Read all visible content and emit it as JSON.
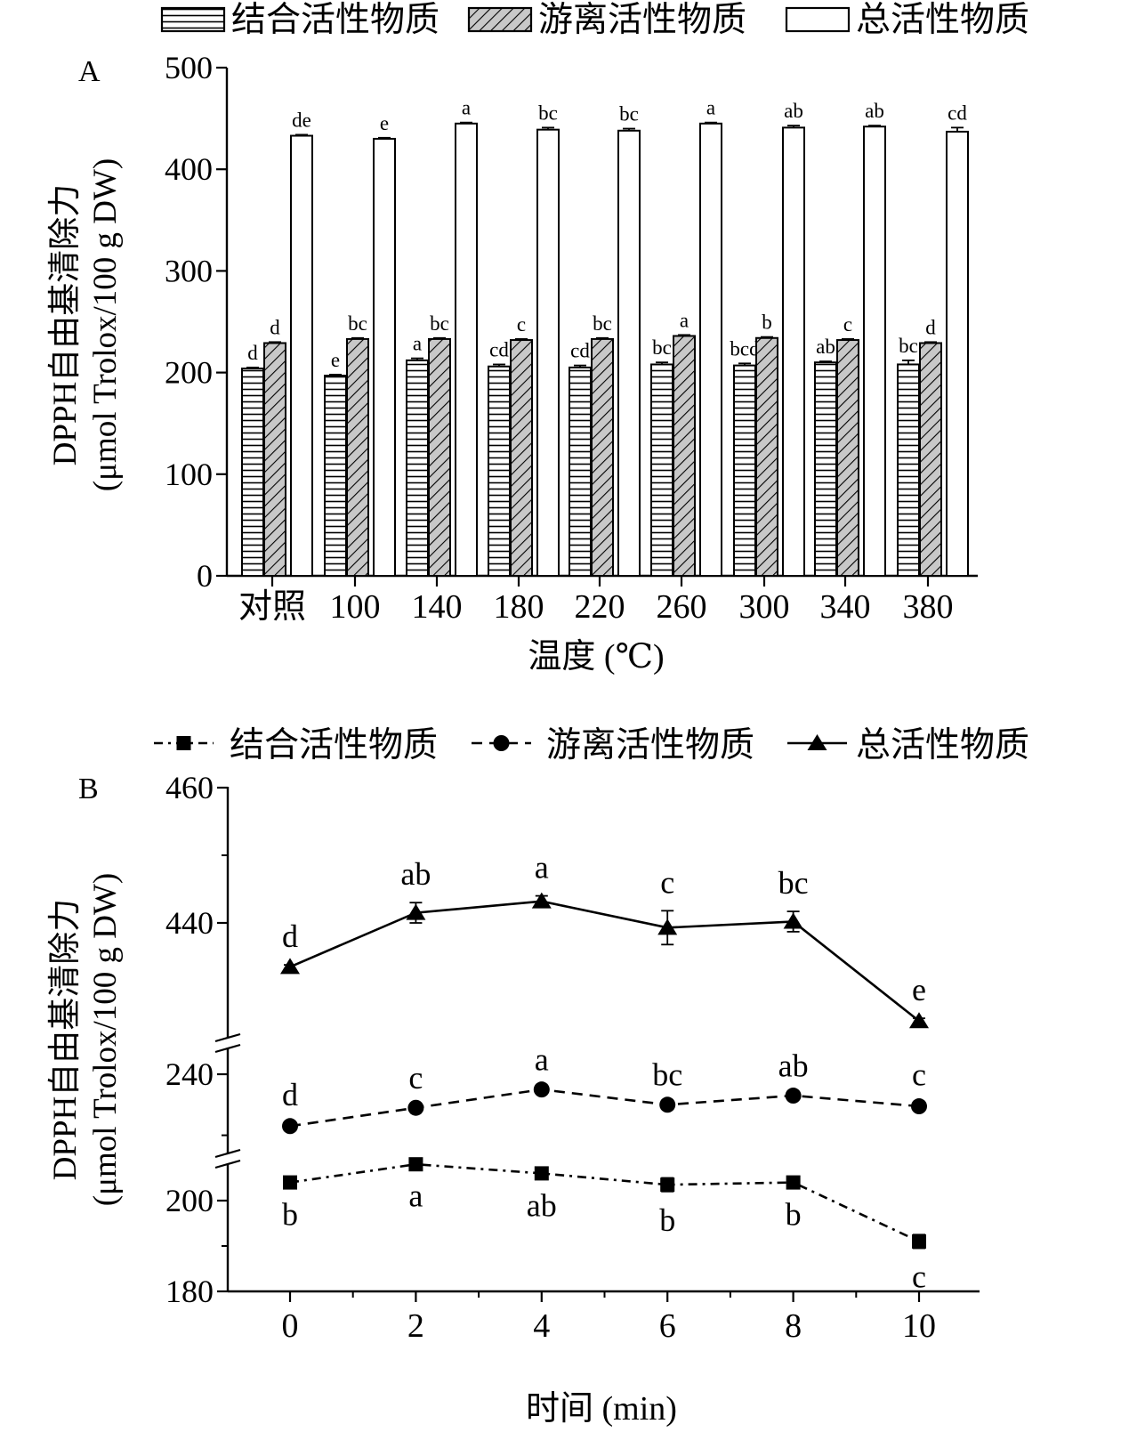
{
  "chart_data": [
    {
      "panel": "A",
      "type": "bar",
      "legend": [
        "结合活性物质",
        "游离活性物质",
        "总活性物质"
      ],
      "legend_position": "top",
      "ylabel_line1": "DPPH自由基清除力",
      "ylabel_line2": "(μmol Trolox/100 g DW)",
      "xlabel": "温度 (℃)",
      "ylim": [
        0,
        500
      ],
      "yticks": [
        0,
        100,
        200,
        300,
        400,
        500
      ],
      "categories": [
        "对照",
        "100",
        "140",
        "180",
        "220",
        "260",
        "300",
        "340",
        "380"
      ],
      "series": [
        {
          "name": "结合活性物质",
          "values": [
            204,
            197,
            212,
            206,
            205,
            208,
            207,
            210,
            208
          ],
          "errors": [
            1,
            1,
            2,
            2,
            2,
            2,
            2,
            1,
            4
          ],
          "letters": [
            "d",
            "e",
            "a",
            "cd",
            "cd",
            "bc",
            "bcd",
            "ab",
            "bc"
          ]
        },
        {
          "name": "游离活性物质",
          "values": [
            229,
            233,
            233,
            232,
            233,
            236,
            234,
            232,
            229
          ],
          "errors": [
            1,
            1,
            1,
            1,
            1,
            1,
            1,
            1,
            1
          ],
          "letters": [
            "d",
            "bc",
            "bc",
            "c",
            "bc",
            "a",
            "b",
            "c",
            "d"
          ]
        },
        {
          "name": "总活性物质",
          "values": [
            433,
            430,
            445,
            439,
            438,
            445,
            441,
            442,
            437
          ],
          "errors": [
            1,
            1,
            1,
            2,
            2,
            1,
            2,
            1,
            4
          ],
          "letters": [
            "de",
            "e",
            "a",
            "bc",
            "bc",
            "a",
            "ab",
            "ab",
            "cd"
          ]
        }
      ]
    },
    {
      "panel": "B",
      "type": "line",
      "legend": [
        "结合活性物质",
        "游离活性物质",
        "总活性物质"
      ],
      "legend_position": "top",
      "ylabel_line1": "DPPH自由基清除力",
      "ylabel_line2": "(μmol Trolox/100 g DW)",
      "xlabel": "时间 (min)",
      "x": [
        0,
        2,
        4,
        6,
        8,
        10
      ],
      "xlim": [
        -1,
        11
      ],
      "broken_axis": true,
      "ytick_labels": [
        "180",
        "200",
        "240",
        "440",
        "460"
      ],
      "series": [
        {
          "name": "结合活性物质",
          "style": "dash-dot, square markers",
          "values": [
            204,
            208,
            206,
            203.5,
            204,
            191
          ],
          "errors": [
            0.8,
            0.6,
            0.8,
            1.5,
            0.8,
            1.5
          ],
          "letters": [
            "b",
            "a",
            "ab",
            "b",
            "b",
            "c"
          ]
        },
        {
          "name": "游离活性物质",
          "style": "dashed, circle markers",
          "values": [
            223,
            229,
            235,
            230,
            233,
            229.5
          ],
          "errors": [
            1,
            0.5,
            0.5,
            0.5,
            0.5,
            1
          ],
          "letters": [
            "d",
            "c",
            "a",
            "bc",
            "ab",
            "c"
          ]
        },
        {
          "name": "总活性物质",
          "style": "solid, triangle markers",
          "values": [
            433.5,
            441.5,
            443.2,
            439.3,
            440.2,
            425.5
          ],
          "errors": [
            0.3,
            1.5,
            0.8,
            2.5,
            1.5,
            0.4
          ],
          "letters": [
            "d",
            "ab",
            "a",
            "c",
            "bc",
            "e"
          ]
        }
      ]
    }
  ]
}
